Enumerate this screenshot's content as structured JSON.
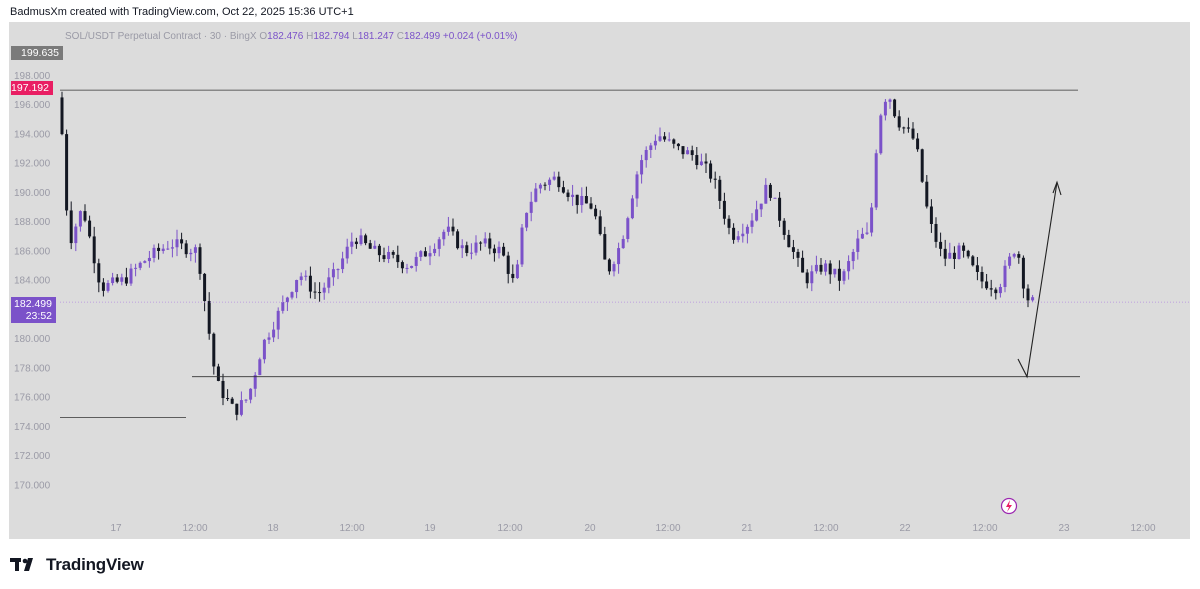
{
  "header": {
    "attribution": "BadmusXm created with TradingView.com, Oct 22, 2025 15:36 UTC+1"
  },
  "legend": {
    "symbol": "SOL/USDT Perpetual Contract · 30 · BingX",
    "open_label": "O",
    "open": "182.476",
    "high_label": "H",
    "high": "182.794",
    "low_label": "L",
    "low": "181.247",
    "close_label": "C",
    "close": "182.499",
    "change": "+0.024 (+0.01%)"
  },
  "badges": {
    "high_mark": "199.635",
    "resistance": "197.192",
    "last_price": "182.499",
    "countdown": "23:52"
  },
  "footer": {
    "brand": "TradingView"
  },
  "colors": {
    "candle_up": "#7b52c9",
    "candle_down": "#131722",
    "background": "#dcdcdc",
    "resistance_badge": "#e91e63",
    "price_badge": "#7b52c9"
  },
  "chart_data": {
    "type": "candlestick",
    "symbol": "SOL/USDT Perpetual Contract",
    "interval": "30",
    "exchange": "BingX",
    "ylim": [
      168.5,
      201
    ],
    "y_ticks": [
      "198.000",
      "196.000",
      "194.000",
      "192.000",
      "190.000",
      "188.000",
      "186.000",
      "184.000",
      "182.000",
      "180.000",
      "178.000",
      "176.000",
      "174.000",
      "172.000",
      "170.000"
    ],
    "x_ticks": [
      "17",
      "12:00",
      "18",
      "12:00",
      "19",
      "12:00",
      "20",
      "12:00",
      "21",
      "12:00",
      "22",
      "12:00",
      "23",
      "12:00"
    ],
    "price_path": [
      {
        "t": 0,
        "p": 196.5
      },
      {
        "t": 2,
        "p": 186.5
      },
      {
        "t": 5,
        "p": 189.0
      },
      {
        "t": 9,
        "p": 183.5
      },
      {
        "t": 14,
        "p": 184.0
      },
      {
        "t": 19,
        "p": 185.5
      },
      {
        "t": 24,
        "p": 186.5
      },
      {
        "t": 30,
        "p": 186.0
      },
      {
        "t": 34,
        "p": 177.0
      },
      {
        "t": 38,
        "p": 175.0
      },
      {
        "t": 41,
        "p": 176.0
      },
      {
        "t": 44,
        "p": 179.5
      },
      {
        "t": 48,
        "p": 182.0
      },
      {
        "t": 52,
        "p": 184.5
      },
      {
        "t": 56,
        "p": 183.0
      },
      {
        "t": 60,
        "p": 184.5
      },
      {
        "t": 64,
        "p": 187.0
      },
      {
        "t": 68,
        "p": 186.0
      },
      {
        "t": 72,
        "p": 185.5
      },
      {
        "t": 76,
        "p": 185.0
      },
      {
        "t": 80,
        "p": 186.0
      },
      {
        "t": 84,
        "p": 187.5
      },
      {
        "t": 88,
        "p": 186.0
      },
      {
        "t": 92,
        "p": 186.5
      },
      {
        "t": 96,
        "p": 186.0
      },
      {
        "t": 99,
        "p": 183.5
      },
      {
        "t": 101,
        "p": 188.5
      },
      {
        "t": 104,
        "p": 190.5
      },
      {
        "t": 108,
        "p": 191.0
      },
      {
        "t": 112,
        "p": 189.5
      },
      {
        "t": 116,
        "p": 189.0
      },
      {
        "t": 119,
        "p": 184.5
      },
      {
        "t": 122,
        "p": 186.5
      },
      {
        "t": 126,
        "p": 192.0
      },
      {
        "t": 130,
        "p": 194.0
      },
      {
        "t": 134,
        "p": 193.0
      },
      {
        "t": 138,
        "p": 192.5
      },
      {
        "t": 142,
        "p": 191.0
      },
      {
        "t": 146,
        "p": 187.0
      },
      {
        "t": 150,
        "p": 188.0
      },
      {
        "t": 154,
        "p": 190.5
      },
      {
        "t": 158,
        "p": 187.0
      },
      {
        "t": 162,
        "p": 184.0
      },
      {
        "t": 166,
        "p": 185.0
      },
      {
        "t": 170,
        "p": 184.0
      },
      {
        "t": 174,
        "p": 187.0
      },
      {
        "t": 176,
        "p": 187.0
      },
      {
        "t": 178,
        "p": 195.0
      },
      {
        "t": 180,
        "p": 197.0
      },
      {
        "t": 182,
        "p": 195.0
      },
      {
        "t": 186,
        "p": 193.5
      },
      {
        "t": 189,
        "p": 188.0
      },
      {
        "t": 192,
        "p": 185.5
      },
      {
        "t": 196,
        "p": 186.0
      },
      {
        "t": 200,
        "p": 184.0
      },
      {
        "t": 204,
        "p": 183.5
      },
      {
        "t": 208,
        "p": 186.5
      },
      {
        "t": 210,
        "p": 183.0
      },
      {
        "t": 211,
        "p": 182.5
      }
    ],
    "annotations": [
      {
        "type": "horizontal_line",
        "price": 197.0
      },
      {
        "type": "horizontal_line",
        "price": 177.4
      },
      {
        "type": "horizontal_line",
        "price": 174.6
      },
      {
        "type": "arrow",
        "direction": "up",
        "from_price": 177.4,
        "to_price": 190.7
      }
    ]
  }
}
